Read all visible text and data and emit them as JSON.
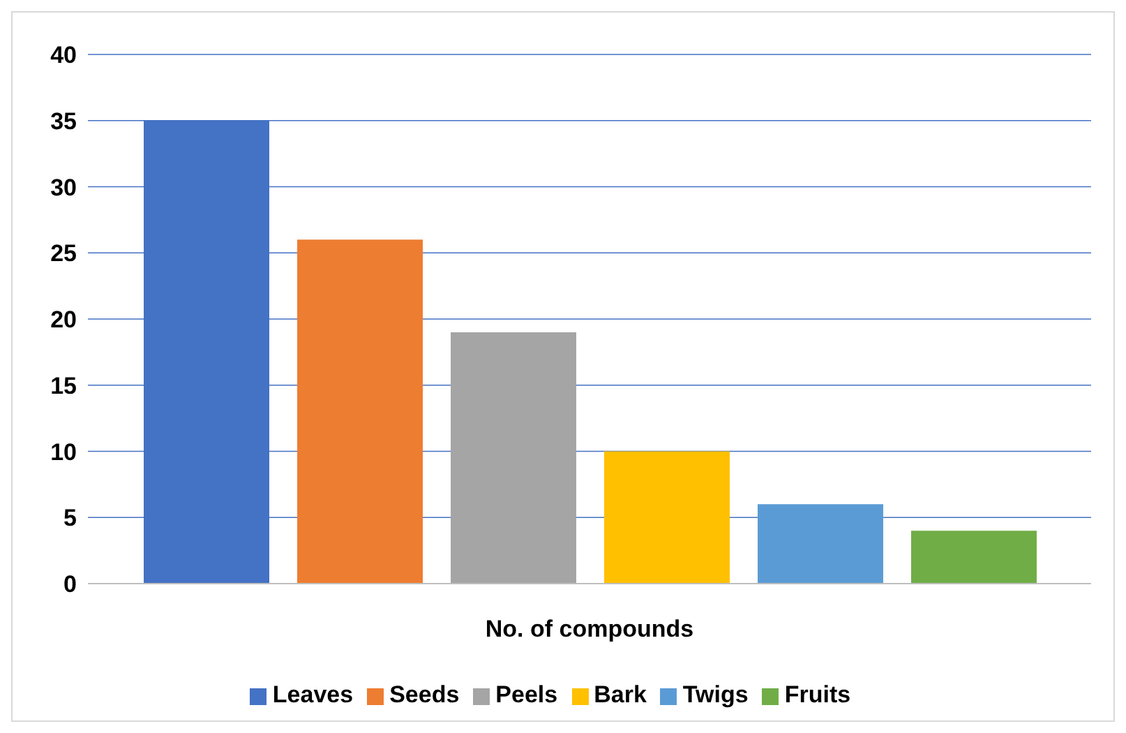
{
  "chart_data": {
    "type": "bar",
    "categories": [
      "No. of compounds"
    ],
    "series": [
      {
        "name": "Leaves",
        "color": "#4472c4",
        "values": [
          35
        ]
      },
      {
        "name": "Seeds",
        "color": "#ed7d31",
        "values": [
          26
        ]
      },
      {
        "name": "Peels",
        "color": "#a5a5a5",
        "values": [
          19
        ]
      },
      {
        "name": "Bark",
        "color": "#ffc000",
        "values": [
          10
        ]
      },
      {
        "name": "Twigs",
        "color": "#5b9bd5",
        "values": [
          6
        ]
      },
      {
        "name": "Fruits",
        "color": "#70ad47",
        "values": [
          4
        ]
      }
    ],
    "ylim": [
      0,
      40
    ],
    "yticks": [
      0,
      5,
      10,
      15,
      20,
      25,
      30,
      35,
      40
    ],
    "grid": "y",
    "legend": "bottom"
  }
}
